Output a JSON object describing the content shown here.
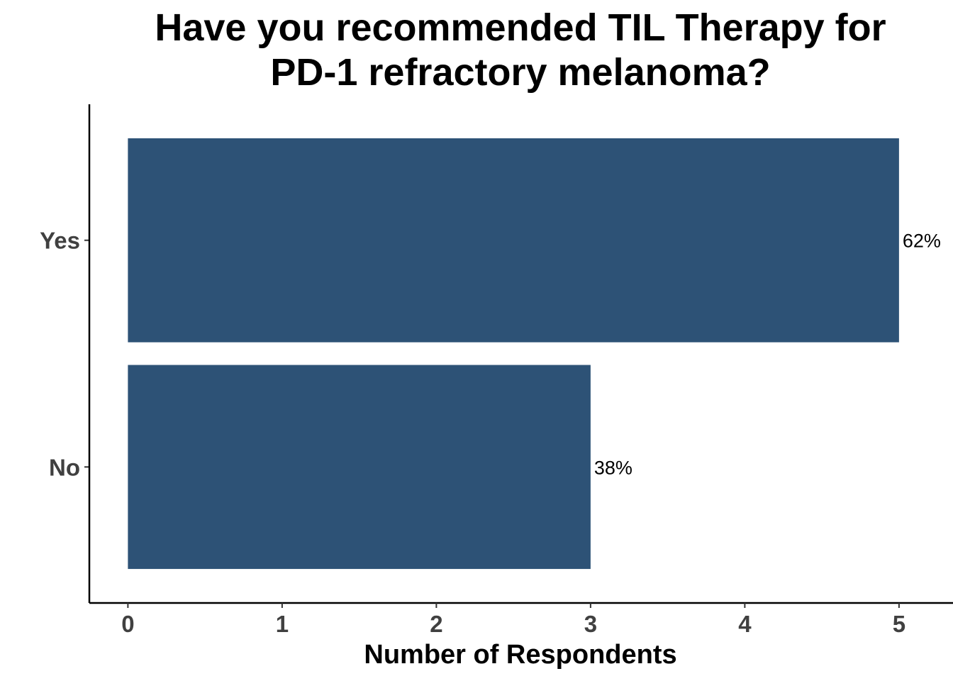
{
  "chart_data": {
    "type": "bar",
    "orientation": "horizontal",
    "title": [
      "Have you recommended TIL Therapy for",
      "PD-1 refractory melanoma?"
    ],
    "xlabel": "Number of Respondents",
    "ylabel": "",
    "categories": [
      "Yes",
      "No"
    ],
    "values": [
      5,
      3
    ],
    "data_labels": [
      "62%",
      "38%"
    ],
    "xlim": [
      -0.25,
      5.35
    ],
    "x_ticks": [
      0,
      1,
      2,
      3,
      4,
      5
    ],
    "grid": false,
    "legend": "none",
    "bar_color": "#2d5276"
  }
}
